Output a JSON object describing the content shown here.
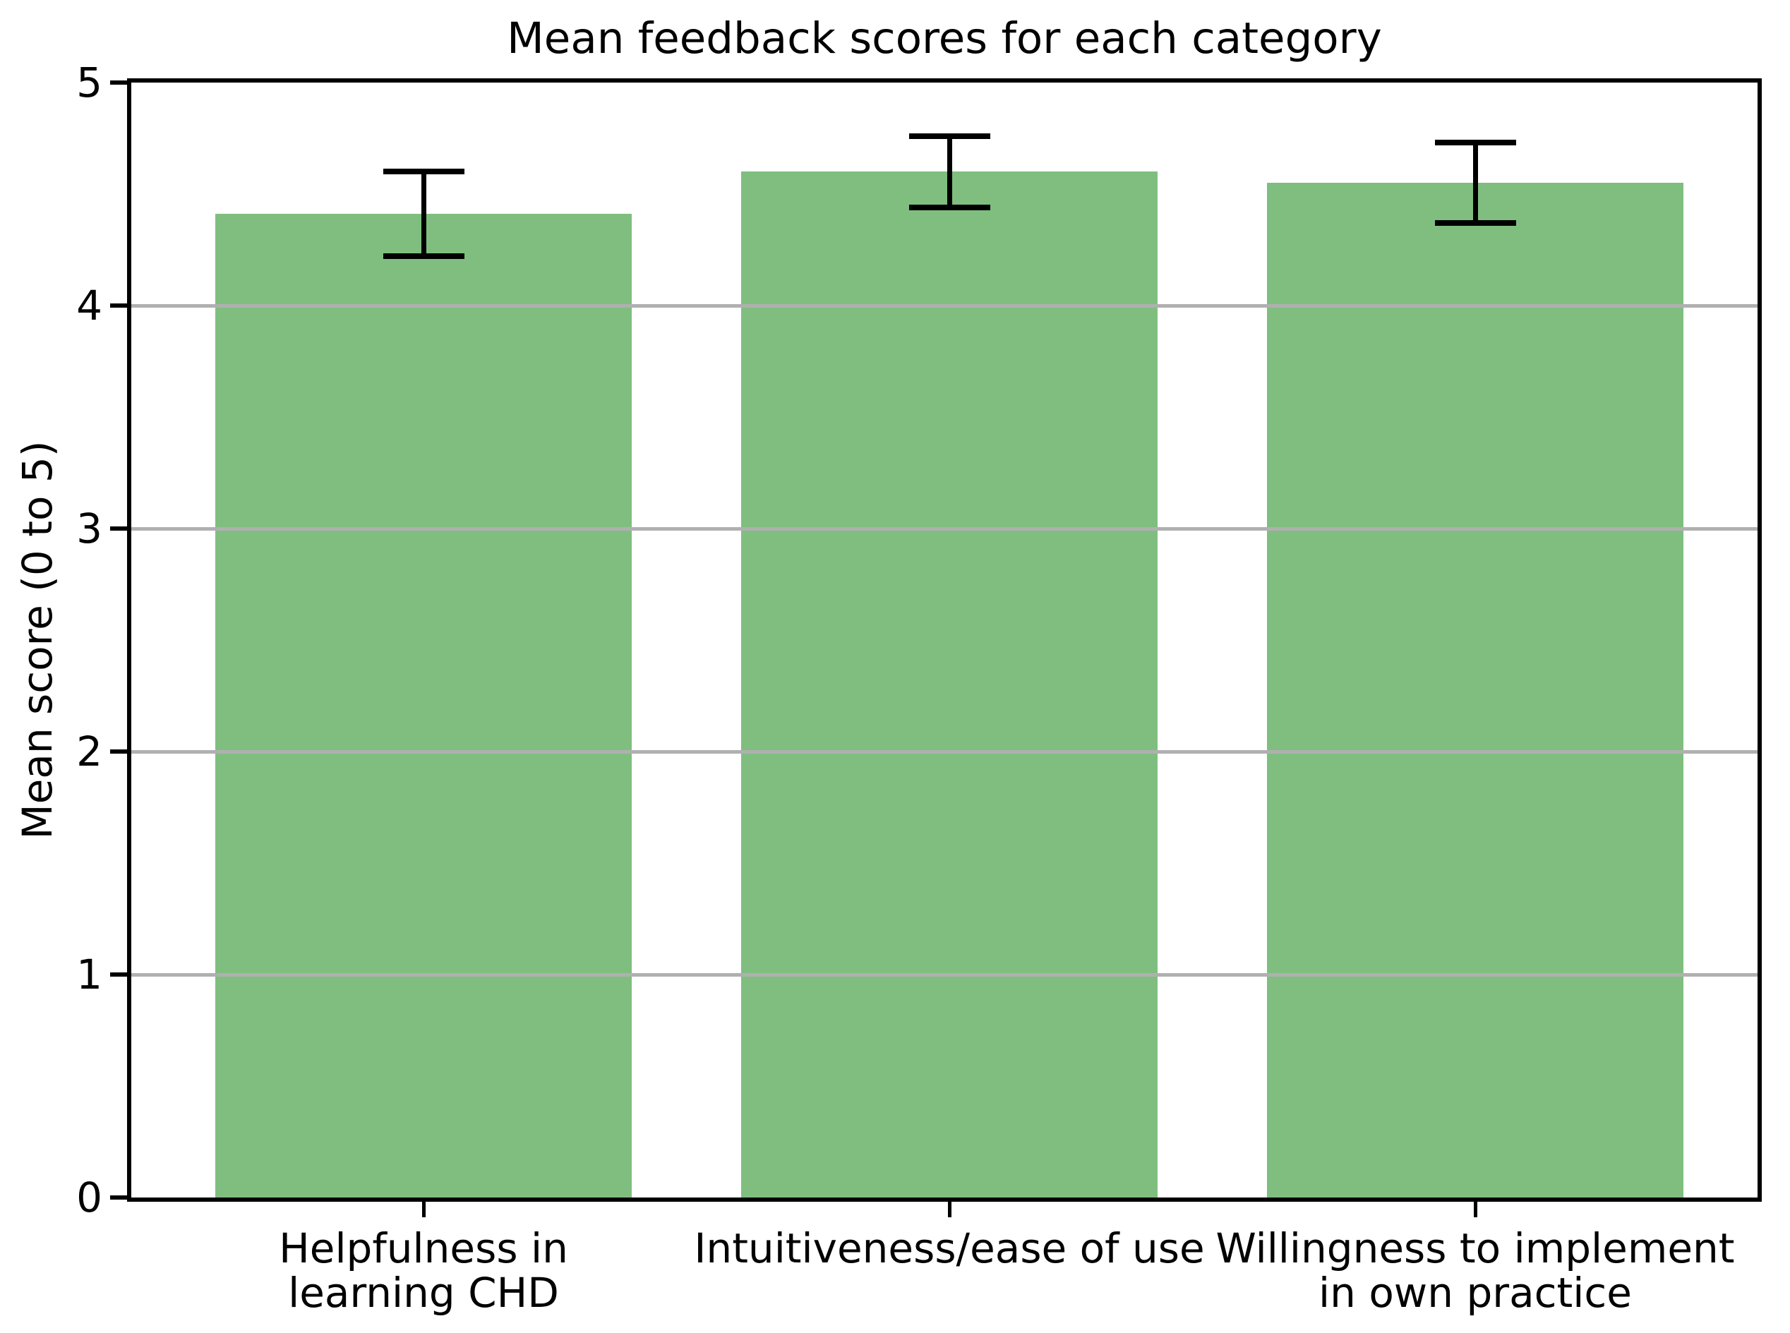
{
  "chart_data": {
    "type": "bar",
    "title": "Mean feedback scores for each category",
    "ylabel": "Mean score (0 to 5)",
    "xlabel": "",
    "ylim": [
      0,
      5
    ],
    "yticks": [
      0,
      1,
      2,
      3,
      4,
      5
    ],
    "ytick_labels": [
      "0",
      "1",
      "2",
      "3",
      "4",
      "5"
    ],
    "grid": {
      "axis": "y",
      "lines_at": [
        1,
        2,
        3,
        4
      ],
      "color": "#b0b0b0",
      "drawn_over_bars": true
    },
    "legend": null,
    "categories": [
      "Helpfulness in learning CHD",
      "Intuitiveness/ease of use",
      "Willingness to implement in own practice"
    ],
    "category_label_lines": [
      [
        "Helpfulness in",
        "learning CHD"
      ],
      [
        "Intuitiveness/ease of use"
      ],
      [
        "Willingness to implement",
        "in own practice"
      ]
    ],
    "values": [
      4.41,
      4.6,
      4.55
    ],
    "errors": [
      0.19,
      0.16,
      0.18
    ],
    "error_ranges": [
      [
        4.22,
        4.6
      ],
      [
        4.44,
        4.76
      ],
      [
        4.37,
        4.73
      ]
    ],
    "colors": {
      "bar_fill": "#7fbe7f",
      "error_bar": "#000000",
      "axis": "#000000",
      "text": "#000000"
    }
  }
}
